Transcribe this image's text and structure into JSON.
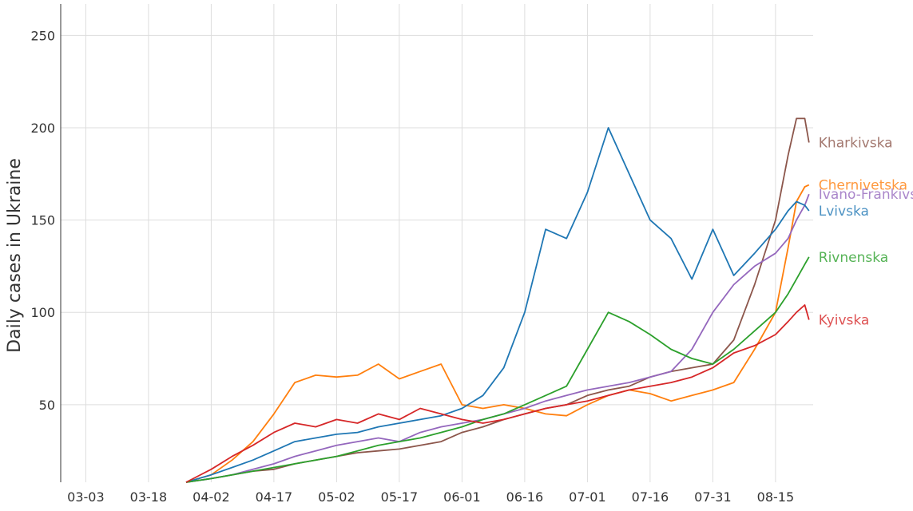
{
  "chart_data": {
    "type": "line",
    "ylabel": "Daily cases in Ukraine",
    "x_tick_labels": [
      "03-03",
      "03-18",
      "04-02",
      "04-17",
      "05-02",
      "05-17",
      "06-01",
      "06-16",
      "07-01",
      "07-16",
      "07-31",
      "08-15"
    ],
    "y_tick_labels": [
      "50",
      "100",
      "150",
      "200",
      "250"
    ],
    "y_ticks": [
      50,
      100,
      150,
      200,
      250
    ],
    "xlim_day": [
      -6,
      174
    ],
    "ylim": [
      8,
      267
    ],
    "grid": true,
    "legend": "labels at line ends (right)",
    "series": [
      {
        "name": "Kharkivska",
        "color": "#8c564b",
        "x_day": [
          24,
          30,
          35,
          40,
          45,
          50,
          55,
          60,
          65,
          70,
          75,
          80,
          85,
          90,
          95,
          100,
          105,
          110,
          115,
          120,
          125,
          130,
          135,
          140,
          145,
          150,
          155,
          160,
          165,
          168,
          170,
          172,
          173
        ],
        "values": [
          8,
          10,
          12,
          14,
          15,
          18,
          20,
          22,
          24,
          25,
          26,
          28,
          30,
          35,
          38,
          42,
          45,
          48,
          50,
          55,
          58,
          60,
          65,
          68,
          70,
          72,
          85,
          115,
          150,
          185,
          205,
          205,
          192
        ]
      },
      {
        "name": "Chernivetska",
        "color": "#ff7f0e",
        "x_day": [
          24,
          30,
          35,
          40,
          45,
          50,
          55,
          60,
          65,
          70,
          75,
          80,
          85,
          90,
          95,
          100,
          105,
          110,
          115,
          120,
          125,
          130,
          135,
          140,
          145,
          150,
          155,
          160,
          165,
          168,
          170,
          172,
          173
        ],
        "values": [
          8,
          12,
          20,
          30,
          45,
          62,
          66,
          65,
          66,
          72,
          64,
          68,
          72,
          50,
          48,
          50,
          48,
          45,
          44,
          50,
          55,
          58,
          56,
          52,
          55,
          58,
          62,
          80,
          100,
          135,
          160,
          168,
          169
        ]
      },
      {
        "name": "Ivano-Frankivska",
        "color": "#9467bd",
        "x_day": [
          24,
          30,
          35,
          40,
          45,
          50,
          55,
          60,
          65,
          70,
          75,
          80,
          85,
          90,
          95,
          100,
          105,
          110,
          115,
          120,
          125,
          130,
          135,
          140,
          145,
          150,
          155,
          160,
          165,
          168,
          170,
          172,
          173
        ],
        "values": [
          8,
          10,
          12,
          15,
          18,
          22,
          25,
          28,
          30,
          32,
          30,
          35,
          38,
          40,
          42,
          45,
          48,
          52,
          55,
          58,
          60,
          62,
          65,
          68,
          80,
          100,
          115,
          125,
          132,
          140,
          150,
          158,
          164
        ]
      },
      {
        "name": "Lvivska",
        "color": "#1f77b4",
        "x_day": [
          24,
          30,
          35,
          40,
          45,
          50,
          55,
          60,
          65,
          70,
          75,
          80,
          85,
          90,
          95,
          100,
          105,
          110,
          115,
          120,
          125,
          130,
          135,
          140,
          145,
          150,
          155,
          160,
          165,
          168,
          170,
          172,
          173
        ],
        "values": [
          8,
          12,
          16,
          20,
          25,
          30,
          32,
          34,
          35,
          38,
          40,
          42,
          44,
          48,
          55,
          70,
          100,
          145,
          140,
          165,
          200,
          175,
          150,
          140,
          118,
          145,
          120,
          132,
          145,
          155,
          160,
          158,
          155
        ]
      },
      {
        "name": "Rivnenska",
        "color": "#2ca02c",
        "x_day": [
          24,
          30,
          35,
          40,
          45,
          50,
          55,
          60,
          65,
          70,
          75,
          80,
          85,
          90,
          95,
          100,
          105,
          110,
          115,
          120,
          125,
          130,
          135,
          140,
          145,
          150,
          155,
          160,
          165,
          168,
          170,
          172,
          173
        ],
        "values": [
          8,
          10,
          12,
          14,
          16,
          18,
          20,
          22,
          25,
          28,
          30,
          32,
          35,
          38,
          42,
          45,
          50,
          55,
          60,
          80,
          100,
          95,
          88,
          80,
          75,
          72,
          80,
          90,
          100,
          110,
          118,
          126,
          130
        ]
      },
      {
        "name": "Kyivska",
        "color": "#d62728",
        "x_day": [
          24,
          30,
          35,
          40,
          45,
          50,
          55,
          60,
          65,
          70,
          75,
          80,
          85,
          90,
          95,
          100,
          105,
          110,
          115,
          120,
          125,
          130,
          135,
          140,
          145,
          150,
          155,
          160,
          165,
          168,
          170,
          172,
          173
        ],
        "values": [
          8,
          15,
          22,
          28,
          35,
          40,
          38,
          42,
          40,
          45,
          42,
          48,
          45,
          42,
          40,
          42,
          45,
          48,
          50,
          52,
          55,
          58,
          60,
          62,
          65,
          70,
          78,
          82,
          88,
          95,
          100,
          104,
          96
        ]
      }
    ]
  }
}
